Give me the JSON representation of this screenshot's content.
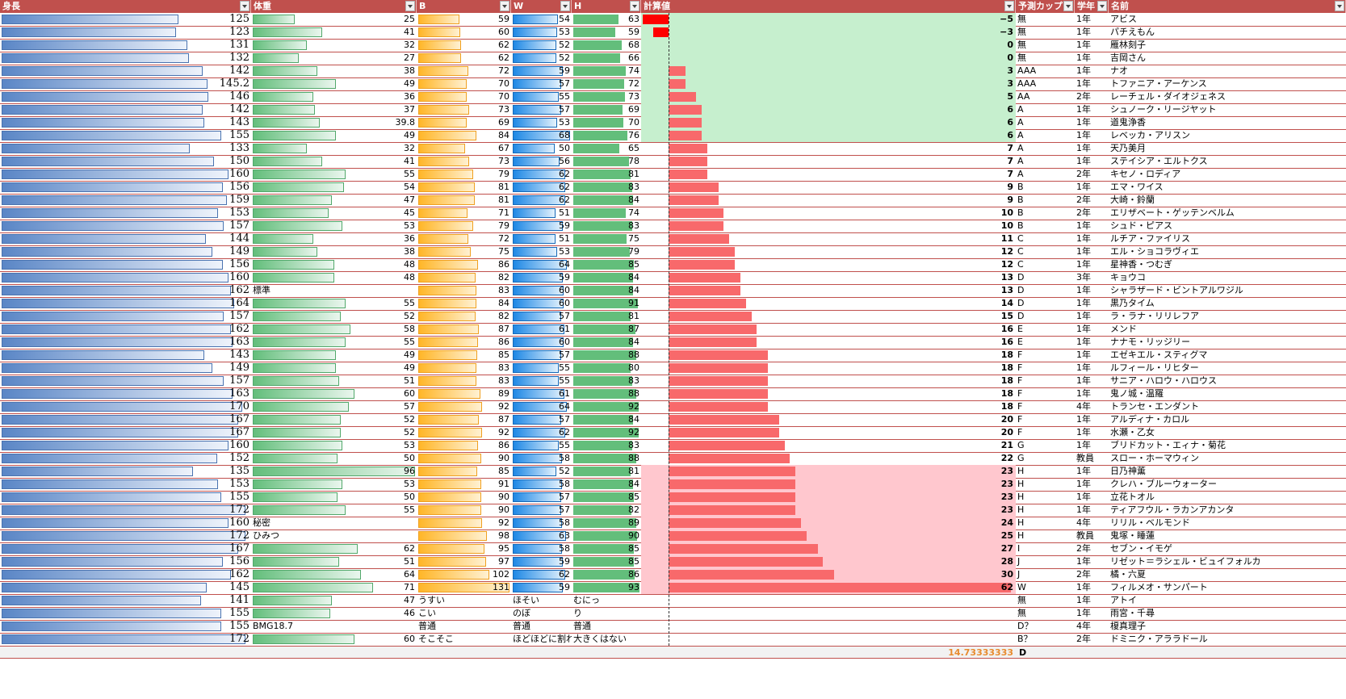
{
  "headers": [
    {
      "key": "height",
      "label": "身長",
      "sort": false
    },
    {
      "key": "weight",
      "label": "体重",
      "sort": false
    },
    {
      "key": "b",
      "label": "B",
      "sort": false
    },
    {
      "key": "w",
      "label": "W",
      "sort": false
    },
    {
      "key": "h",
      "label": "H",
      "sort": false
    },
    {
      "key": "calc",
      "label": "計算値",
      "sort": true
    },
    {
      "key": "cup",
      "label": "予測カップ",
      "sort": false
    },
    {
      "key": "grade",
      "label": "学年",
      "sort": false
    },
    {
      "key": "name",
      "label": "名前",
      "sort": false
    }
  ],
  "colors": {
    "header_bg": "#c0504d",
    "height_bar": "#5a86c6",
    "weight_bar": "#63be7b",
    "b_bar": "#ffb628",
    "w_bar": "#1e88e5",
    "h_bar": "#63be7b",
    "calc_positive": "#f8696b",
    "calc_negative": "#ff0000",
    "low_band_bg": "#c6efce",
    "high_band_bg": "#ffc7ce",
    "average_text": "#e88b2f"
  },
  "scales": {
    "height_max": 175,
    "weight_max": 96,
    "b_max": 131,
    "w_max": 68,
    "h_max": 93,
    "calc_max": 62
  },
  "rows": [
    {
      "height": "125",
      "weight": "25",
      "b": "59",
      "w": "54",
      "h": "63",
      "calc": "−5",
      "cup": "無",
      "grade": "1年",
      "name": "アビス",
      "band": "low"
    },
    {
      "height": "123",
      "weight": "41",
      "b": "60",
      "w": "53",
      "h": "59",
      "calc": "−3",
      "cup": "無",
      "grade": "1年",
      "name": "パチえもん",
      "band": "low"
    },
    {
      "height": "131",
      "weight": "32",
      "b": "62",
      "w": "52",
      "h": "68",
      "calc": "0",
      "cup": "無",
      "grade": "1年",
      "name": "雁林刻子",
      "band": "low"
    },
    {
      "height": "132",
      "weight": "27",
      "b": "62",
      "w": "52",
      "h": "66",
      "calc": "0",
      "cup": "無",
      "grade": "1年",
      "name": "吉岡さん",
      "band": "low"
    },
    {
      "height": "142",
      "weight": "38",
      "b": "72",
      "w": "59",
      "h": "74",
      "calc": "3",
      "cup": "AAA",
      "grade": "1年",
      "name": "ナオ",
      "band": "low"
    },
    {
      "height": "145.2",
      "weight": "49",
      "b": "70",
      "w": "57",
      "h": "72",
      "calc": "3",
      "cup": "AAA",
      "grade": "1年",
      "name": "トファニア・アーケンス",
      "band": "low"
    },
    {
      "height": "146",
      "weight": "36",
      "b": "70",
      "w": "55",
      "h": "73",
      "calc": "5",
      "cup": "AA",
      "grade": "2年",
      "name": "レーチェル・ダイオジェネス",
      "band": "low"
    },
    {
      "height": "142",
      "weight": "37",
      "b": "73",
      "w": "57",
      "h": "69",
      "calc": "6",
      "cup": "A",
      "grade": "1年",
      "name": "シュノーク・リージヤット",
      "band": "low"
    },
    {
      "height": "143",
      "weight": "39.8",
      "b": "69",
      "w": "53",
      "h": "70",
      "calc": "6",
      "cup": "A",
      "grade": "1年",
      "name": "道鬼浄香",
      "band": "low"
    },
    {
      "height": "155",
      "weight": "49",
      "b": "84",
      "w": "68",
      "h": "76",
      "calc": "6",
      "cup": "A",
      "grade": "1年",
      "name": "レベッカ・アリスン",
      "band": "low"
    },
    {
      "height": "133",
      "weight": "32",
      "b": "67",
      "w": "50",
      "h": "65",
      "calc": "7",
      "cup": "A",
      "grade": "1年",
      "name": "天乃美月",
      "band": ""
    },
    {
      "height": "150",
      "weight": "41",
      "b": "73",
      "w": "56",
      "h": "78",
      "calc": "7",
      "cup": "A",
      "grade": "1年",
      "name": "ステイシア・エルトクス",
      "band": ""
    },
    {
      "height": "160",
      "weight": "55",
      "b": "79",
      "w": "62",
      "h": "81",
      "calc": "7",
      "cup": "A",
      "grade": "2年",
      "name": "キセノ・ロディア",
      "band": ""
    },
    {
      "height": "156",
      "weight": "54",
      "b": "81",
      "w": "62",
      "h": "83",
      "calc": "9",
      "cup": "B",
      "grade": "1年",
      "name": "エマ・ワイス",
      "band": ""
    },
    {
      "height": "159",
      "weight": "47",
      "b": "81",
      "w": "62",
      "h": "84",
      "calc": "9",
      "cup": "B",
      "grade": "2年",
      "name": "大崎・鈴蘭",
      "band": ""
    },
    {
      "height": "153",
      "weight": "45",
      "b": "71",
      "w": "51",
      "h": "74",
      "calc": "10",
      "cup": "B",
      "grade": "2年",
      "name": "エリザベート・ゲッテンベルム",
      "band": ""
    },
    {
      "height": "157",
      "weight": "53",
      "b": "79",
      "w": "59",
      "h": "83",
      "calc": "10",
      "cup": "B",
      "grade": "1年",
      "name": "シュド・ピアス",
      "band": ""
    },
    {
      "height": "144",
      "weight": "36",
      "b": "72",
      "w": "51",
      "h": "75",
      "calc": "11",
      "cup": "C",
      "grade": "1年",
      "name": "ルチア・ファイリス",
      "band": ""
    },
    {
      "height": "149",
      "weight": "38",
      "b": "75",
      "w": "53",
      "h": "79",
      "calc": "12",
      "cup": "C",
      "grade": "1年",
      "name": "エル・ショコラヴィエ",
      "band": ""
    },
    {
      "height": "156",
      "weight": "48",
      "b": "86",
      "w": "64",
      "h": "85",
      "calc": "12",
      "cup": "C",
      "grade": "1年",
      "name": "星神香・つむぎ",
      "band": ""
    },
    {
      "height": "160",
      "weight": "48",
      "b": "82",
      "w": "59",
      "h": "84",
      "calc": "13",
      "cup": "D",
      "grade": "3年",
      "name": "キョウコ",
      "band": ""
    },
    {
      "height": "162",
      "weight": "標準",
      "b": "83",
      "w": "60",
      "h": "84",
      "calc": "13",
      "cup": "D",
      "grade": "1年",
      "name": "シャラザード・ビントアルワジル",
      "band": ""
    },
    {
      "height": "164",
      "weight": "55",
      "b": "84",
      "w": "60",
      "h": "91",
      "calc": "14",
      "cup": "D",
      "grade": "1年",
      "name": "黒乃タイム",
      "band": ""
    },
    {
      "height": "157",
      "weight": "52",
      "b": "82",
      "w": "57",
      "h": "81",
      "calc": "15",
      "cup": "D",
      "grade": "1年",
      "name": "ラ・ラナ・リリレフア",
      "band": ""
    },
    {
      "height": "162",
      "weight": "58",
      "b": "87",
      "w": "61",
      "h": "87",
      "calc": "16",
      "cup": "E",
      "grade": "1年",
      "name": "メンド",
      "band": ""
    },
    {
      "height": "163",
      "weight": "55",
      "b": "86",
      "w": "60",
      "h": "84",
      "calc": "16",
      "cup": "E",
      "grade": "1年",
      "name": "ナナモ・リッジリー",
      "band": ""
    },
    {
      "height": "143",
      "weight": "49",
      "b": "85",
      "w": "57",
      "h": "88",
      "calc": "18",
      "cup": "F",
      "grade": "1年",
      "name": "エゼキエル・スティグマ",
      "band": ""
    },
    {
      "height": "149",
      "weight": "49",
      "b": "83",
      "w": "55",
      "h": "80",
      "calc": "18",
      "cup": "F",
      "grade": "1年",
      "name": "ルフィール・リヒター",
      "band": ""
    },
    {
      "height": "157",
      "weight": "51",
      "b": "83",
      "w": "55",
      "h": "83",
      "calc": "18",
      "cup": "F",
      "grade": "1年",
      "name": "サニア・ハロウ・ハロウス",
      "band": ""
    },
    {
      "height": "163",
      "weight": "60",
      "b": "89",
      "w": "61",
      "h": "88",
      "calc": "18",
      "cup": "F",
      "grade": "1年",
      "name": "鬼ノ城・温羅",
      "band": ""
    },
    {
      "height": "170",
      "weight": "57",
      "b": "92",
      "w": "64",
      "h": "92",
      "calc": "18",
      "cup": "F",
      "grade": "4年",
      "name": "トランセ・エンダント",
      "band": ""
    },
    {
      "height": "167",
      "weight": "52",
      "b": "87",
      "w": "57",
      "h": "84",
      "calc": "20",
      "cup": "F",
      "grade": "1年",
      "name": "アルディナ・カロル",
      "band": ""
    },
    {
      "height": "167",
      "weight": "52",
      "b": "92",
      "w": "62",
      "h": "92",
      "calc": "20",
      "cup": "F",
      "grade": "1年",
      "name": "水瀬・乙女",
      "band": ""
    },
    {
      "height": "160",
      "weight": "53",
      "b": "86",
      "w": "55",
      "h": "83",
      "calc": "21",
      "cup": "G",
      "grade": "1年",
      "name": "ブリドカット・エィナ・菊花",
      "band": ""
    },
    {
      "height": "152",
      "weight": "50",
      "b": "90",
      "w": "58",
      "h": "88",
      "calc": "22",
      "cup": "G",
      "grade": "教員",
      "name": "スロー・ホーマウィン",
      "band": ""
    },
    {
      "height": "135",
      "weight": "96",
      "b": "85",
      "w": "52",
      "h": "81",
      "calc": "23",
      "cup": "H",
      "grade": "1年",
      "name": "日乃神薫",
      "band": "high"
    },
    {
      "height": "153",
      "weight": "53",
      "b": "91",
      "w": "58",
      "h": "84",
      "calc": "23",
      "cup": "H",
      "grade": "1年",
      "name": "クレハ・ブルーウォーター",
      "band": "high"
    },
    {
      "height": "155",
      "weight": "50",
      "b": "90",
      "w": "57",
      "h": "85",
      "calc": "23",
      "cup": "H",
      "grade": "1年",
      "name": "立花トオル",
      "band": "high"
    },
    {
      "height": "172",
      "weight": "55",
      "b": "90",
      "w": "57",
      "h": "82",
      "calc": "23",
      "cup": "H",
      "grade": "1年",
      "name": "ティアフウル・ラカンアカンタ",
      "band": "high"
    },
    {
      "height": "160",
      "weight": "秘密",
      "b": "92",
      "w": "58",
      "h": "89",
      "calc": "24",
      "cup": "H",
      "grade": "4年",
      "name": "リリル・ベルモンド",
      "band": "high"
    },
    {
      "height": "172",
      "weight": "ひみつ",
      "b": "98",
      "w": "63",
      "h": "90",
      "calc": "25",
      "cup": "H",
      "grade": "教員",
      "name": "鬼塚・睡蓮",
      "band": "high"
    },
    {
      "height": "167",
      "weight": "62",
      "b": "95",
      "w": "58",
      "h": "85",
      "calc": "27",
      "cup": "I",
      "grade": "2年",
      "name": "セブン・イモゲ",
      "band": "high"
    },
    {
      "height": "156",
      "weight": "51",
      "b": "97",
      "w": "59",
      "h": "85",
      "calc": "28",
      "cup": "J",
      "grade": "1年",
      "name": "リゼット＝ラシェル・ビュイフォルカ",
      "band": "high"
    },
    {
      "height": "162",
      "weight": "64",
      "b": "102",
      "w": "62",
      "h": "86",
      "calc": "30",
      "cup": "J",
      "grade": "2年",
      "name": "橘・六夏",
      "band": "high"
    },
    {
      "height": "145",
      "weight": "71",
      "b": "131",
      "w": "59",
      "h": "93",
      "calc": "62",
      "cup": "W",
      "grade": "1年",
      "name": "フィルメオ・サンパート",
      "band": "high"
    },
    {
      "height": "141",
      "weight": "47",
      "b": "うすい",
      "w": "ほそい",
      "h": "むにっ",
      "calc": "",
      "cup": "無",
      "grade": "1年",
      "name": "アトイ",
      "band": ""
    },
    {
      "height": "155",
      "weight": "46",
      "b": "こい",
      "w": "のぼ",
      "h": "り",
      "calc": "",
      "cup": "無",
      "grade": "1年",
      "name": "雨宮・千尋",
      "band": ""
    },
    {
      "height": "155",
      "weight": "BMG18.7",
      "b": "普通",
      "w": "普通",
      "h": "普通",
      "calc": "",
      "cup": "D？",
      "grade": "4年",
      "name": "榎真理子",
      "band": ""
    },
    {
      "height": "172",
      "weight": "60",
      "b": "そこそこ",
      "w": "ほどほどに割れ",
      "h": "大きくはない",
      "calc": "",
      "cup": "B？",
      "grade": "2年",
      "name": "ドミニク・アララドール",
      "band": ""
    }
  ],
  "footer": {
    "average": "14.73333333",
    "cup": "D"
  }
}
